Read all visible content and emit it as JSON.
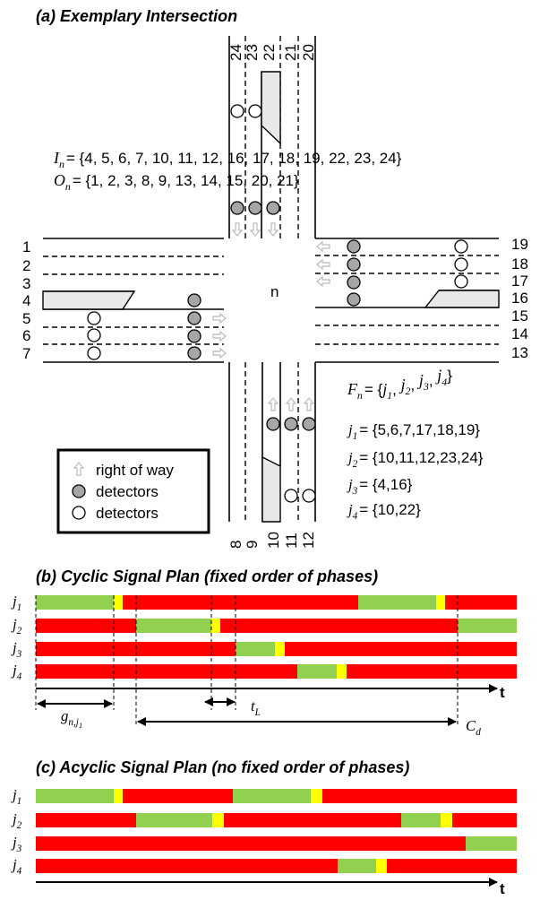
{
  "panel_a": {
    "title": "(a) Exemplary Intersection",
    "node": "n",
    "lanes": {
      "left": [
        "1",
        "2",
        "3",
        "4",
        "5",
        "6",
        "7"
      ],
      "right": [
        "19",
        "18",
        "17",
        "16",
        "15",
        "14",
        "13"
      ],
      "top": [
        "24",
        "23",
        "22",
        "21",
        "20"
      ],
      "bottom": [
        "8",
        "9",
        "10",
        "11",
        "12"
      ]
    },
    "sets": [
      {
        "symbol": "I",
        "sub": "n",
        "text": "= {4, 5, 6, 7, 10, 11, 12, 16, 17, 18, 19, 22, 23, 24}"
      },
      {
        "symbol": "O",
        "sub": "n",
        "text": "= {1, 2, 3, 8, 9, 13, 14, 15, 20, 21}"
      }
    ],
    "phase_set": {
      "symbol": "F",
      "sub": "n",
      "open": "= {",
      "members": [
        {
          "symbol": "j",
          "sub": "1"
        },
        {
          "symbol": "j",
          "sub": "2"
        },
        {
          "symbol": "j",
          "sub": "3"
        },
        {
          "symbol": "j",
          "sub": "4"
        }
      ],
      "separator": ", ",
      "close": "}"
    },
    "phases": [
      {
        "symbol": "j",
        "sub": "1",
        "text": "= {5,6,7,17,18,19}"
      },
      {
        "symbol": "j",
        "sub": "2",
        "text": "= {10,11,12,23,24}"
      },
      {
        "symbol": "j",
        "sub": "3",
        "text": "= {4,16}"
      },
      {
        "symbol": "j",
        "sub": "4",
        "text": "= {10,22}"
      }
    ],
    "legend": [
      "right of way",
      "detectors",
      "detectors"
    ]
  },
  "panel_b": {
    "title": "(b) Cyclic Signal Plan (fixed order of phases)",
    "rows": [
      {
        "symbol": "j",
        "sub": "1"
      },
      {
        "symbol": "j",
        "sub": "2"
      },
      {
        "symbol": "j",
        "sub": "3"
      },
      {
        "symbol": "j",
        "sub": "4"
      }
    ],
    "axis": "t",
    "annotations": [
      {
        "symbol": "g",
        "sub": "n,j",
        "subsub": "1"
      },
      {
        "symbol": "t",
        "sub": "L"
      },
      {
        "symbol": "C",
        "sub": "d"
      }
    ]
  },
  "panel_c": {
    "title": "(c) Acyclic Signal Plan (no fixed order of phases)",
    "rows": [
      {
        "symbol": "j",
        "sub": "1"
      },
      {
        "symbol": "j",
        "sub": "2"
      },
      {
        "symbol": "j",
        "sub": "3"
      },
      {
        "symbol": "j",
        "sub": "4"
      }
    ],
    "axis": "t"
  }
}
